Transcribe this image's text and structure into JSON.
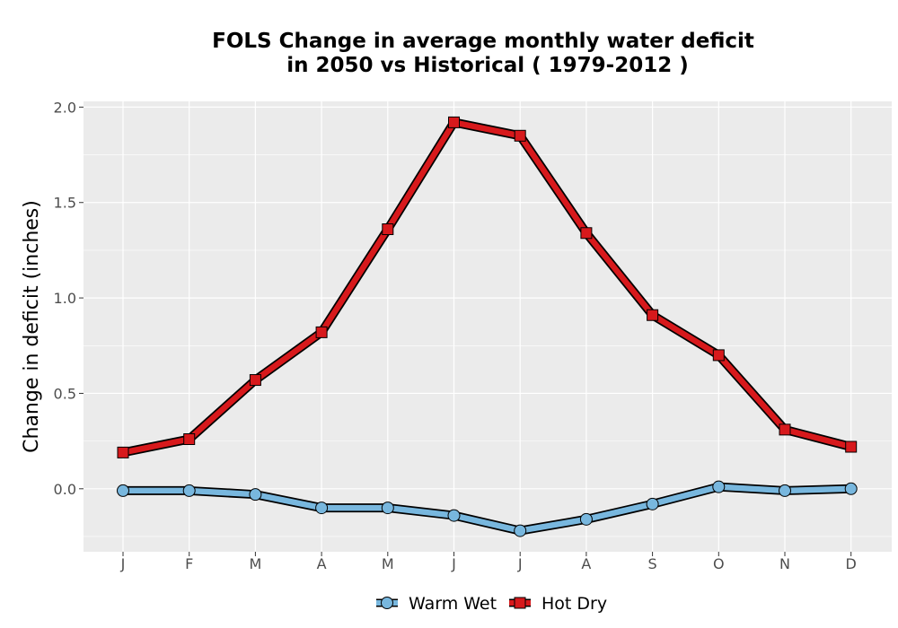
{
  "chart_data": {
    "type": "line",
    "title_lines": [
      "FOLS  Change in average monthly water deficit",
      "in 2050 vs Historical ( 1979-2012 )"
    ],
    "xlabel": "",
    "ylabel": "Change in deficit (inches)",
    "categories": [
      "J",
      "F",
      "M",
      "A",
      "M",
      "J",
      "J",
      "A",
      "S",
      "O",
      "N",
      "D"
    ],
    "ylim": [
      -0.33,
      2.03
    ],
    "yticks": [
      0.0,
      0.5,
      1.0,
      1.5,
      2.0
    ],
    "ytick_labels": [
      "0.0",
      "0.5",
      "1.0",
      "1.5",
      "2.0"
    ],
    "grid": true,
    "panel_color": "#ebebeb",
    "legend_position": "bottom",
    "series": [
      {
        "name": "Warm Wet",
        "marker": "circle",
        "color": "#78b7de",
        "values": [
          -0.01,
          -0.01,
          -0.03,
          -0.1,
          -0.1,
          -0.14,
          -0.22,
          -0.16,
          -0.08,
          0.01,
          -0.01,
          0.0
        ]
      },
      {
        "name": "Hot Dry",
        "marker": "square",
        "color": "#d7191c",
        "values": [
          0.19,
          0.26,
          0.57,
          0.82,
          1.36,
          1.92,
          1.85,
          1.34,
          0.91,
          0.7,
          0.31,
          0.22
        ]
      }
    ]
  }
}
